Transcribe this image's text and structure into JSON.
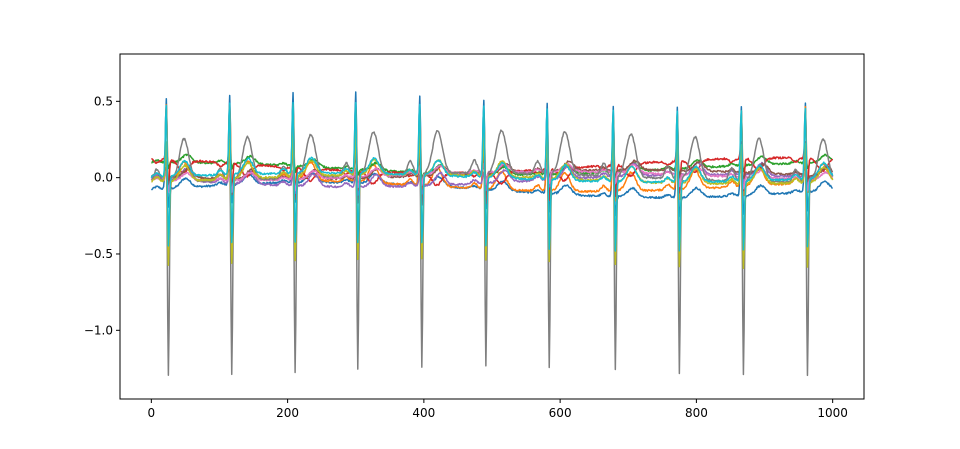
{
  "chart_data": {
    "type": "line",
    "title": "",
    "xlabel": "",
    "ylabel": "",
    "xlim": [
      -46,
      1046
    ],
    "ylim": [
      -1.45,
      0.81
    ],
    "grid": false,
    "x_ticks": [
      0,
      200,
      400,
      600,
      800,
      1000
    ],
    "x_tick_labels": [
      "0",
      "200",
      "400",
      "600",
      "800",
      "1000"
    ],
    "y_ticks": [
      0.5,
      0.0,
      -0.5,
      -1.0
    ],
    "y_tick_labels": [
      "0.5",
      "0.0",
      "−0.5",
      "−1.0"
    ],
    "n_samples": 1000,
    "beats": [
      22,
      115,
      208,
      300,
      394,
      488,
      581,
      678,
      772,
      866,
      960
    ],
    "series": [
      {
        "color": "#1f77b4",
        "r_amp": 0.6,
        "s_amp": -0.18,
        "t_amp": 0.06,
        "baseline": -0.08,
        "drift": 0.05,
        "t_delay": 28
      },
      {
        "color": "#ff7f0e",
        "r_amp": 0.5,
        "s_amp": -0.1,
        "t_amp": 0.12,
        "baseline": -0.05,
        "drift": 0.04,
        "t_delay": 26
      },
      {
        "color": "#2ca02c",
        "r_amp": 0.1,
        "s_amp": -0.05,
        "t_amp": 0.05,
        "baseline": 0.06,
        "drift": 0.04,
        "t_delay": 30
      },
      {
        "color": "#d62728",
        "r_amp": 0.12,
        "s_amp": -0.22,
        "t_amp": -0.08,
        "baseline": 0.08,
        "drift": 0.05,
        "t_delay": 25
      },
      {
        "color": "#9467bd",
        "r_amp": 0.08,
        "s_amp": -0.06,
        "t_amp": 0.08,
        "baseline": -0.02,
        "drift": 0.04,
        "t_delay": 30
      },
      {
        "color": "#8c564b",
        "r_amp": 0.06,
        "s_amp": -0.05,
        "t_amp": 0.06,
        "baseline": 0.02,
        "drift": 0.03,
        "t_delay": 32
      },
      {
        "color": "#e377c2",
        "r_amp": 0.06,
        "s_amp": -0.08,
        "t_amp": 0.05,
        "baseline": 0.01,
        "drift": 0.03,
        "t_delay": 30
      },
      {
        "color": "#7f7f7f",
        "r_amp": 0.3,
        "s_amp": -1.3,
        "t_amp": 0.28,
        "baseline": 0.0,
        "drift": 0.03,
        "t_delay": 26
      },
      {
        "color": "#bcbd22",
        "r_amp": 0.3,
        "s_amp": -0.58,
        "t_amp": 0.1,
        "baseline": -0.01,
        "drift": 0.03,
        "t_delay": 27
      },
      {
        "color": "#17becf",
        "r_amp": 0.5,
        "s_amp": -0.5,
        "t_amp": 0.1,
        "baseline": 0.0,
        "drift": 0.03,
        "t_delay": 27
      }
    ]
  }
}
